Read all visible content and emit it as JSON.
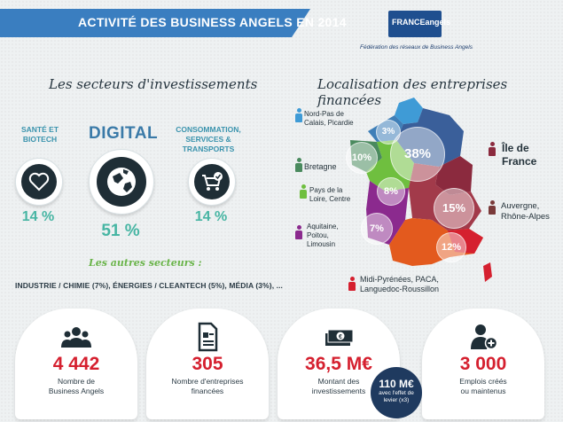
{
  "header": {
    "title": "ACTIVITÉ DES BUSINESS ANGELS EN 2014",
    "logo_text": "FRANCEangels",
    "logo_subtitle": "Fédération des réseaux de Business Angels"
  },
  "sectors": {
    "title": "Les secteurs d'investissements",
    "items": [
      {
        "label_line1": "SANTÉ ET",
        "label_line2": "BIOTECH",
        "icon": "heart-icon",
        "percent": "14 %"
      },
      {
        "label_line1": "DIGITAL",
        "label_line2": "",
        "icon": "globe-icon",
        "percent": "51 %"
      },
      {
        "label_line1": "CONSOMMATION,",
        "label_line2": "SERVICES & TRANSPORTS",
        "icon": "cart-icon",
        "percent": "14 %"
      }
    ],
    "others_title": "Les autres secteurs :",
    "others_line": "INDUSTRIE / CHIMIE (7%), ÉNERGIES / CLEANTECH (5%), MÉDIA (3%), ..."
  },
  "localisation": {
    "title": "Localisation des entreprises financées",
    "regions": [
      {
        "name_line1": "Nord-Pas de",
        "name_line2": "Calais, Picardie",
        "percent": "3%",
        "color": "#3f9bd6"
      },
      {
        "name_line1": "Bretagne",
        "name_line2": "",
        "percent": "10%",
        "color": "#4a8a5e"
      },
      {
        "name_line1": "Pays de la",
        "name_line2": "Loire, Centre",
        "percent": "8%",
        "color": "#6fbf3f"
      },
      {
        "name_line1": "Aquitaine,",
        "name_line2": "Poitou,",
        "name_line3": "Limousin",
        "percent": "7%",
        "color": "#8b2a8e"
      },
      {
        "name_line1": "Île de",
        "name_line2": "France",
        "percent": "38%",
        "color": "#8b2a3e"
      },
      {
        "name_line1": "Auvergne,",
        "name_line2": "Rhône-Alpes",
        "percent": "15%",
        "color": "#7a3a3a"
      },
      {
        "name_line1": "Midi-Pyrénées, PACA,",
        "name_line2": "Languedoc-Roussillon",
        "percent": "12%",
        "color": "#d5202f"
      }
    ]
  },
  "stats": [
    {
      "value": "4 442",
      "label_line1": "Nombre de",
      "label_line2": "Business Angels",
      "icon": "people-icon"
    },
    {
      "value": "305",
      "label_line1": "Nombre d'entreprises",
      "label_line2": "financées",
      "icon": "document-icon"
    },
    {
      "value": "36,5 M€",
      "label_line1": "Montant des",
      "label_line2": "investissements",
      "icon": "money-icon"
    },
    {
      "value": "3 000",
      "label_line1": "Emplois créés",
      "label_line2": "ou maintenus",
      "icon": "user-add-icon"
    }
  ],
  "levier": {
    "value": "110 M€",
    "line1": "avec l'effet de",
    "line2": "levier (x3)"
  },
  "colors": {
    "ribbon": "#3a7ec0",
    "accent_teal": "#47b5a3",
    "accent_red": "#d5202f",
    "green": "#6ab44a"
  }
}
